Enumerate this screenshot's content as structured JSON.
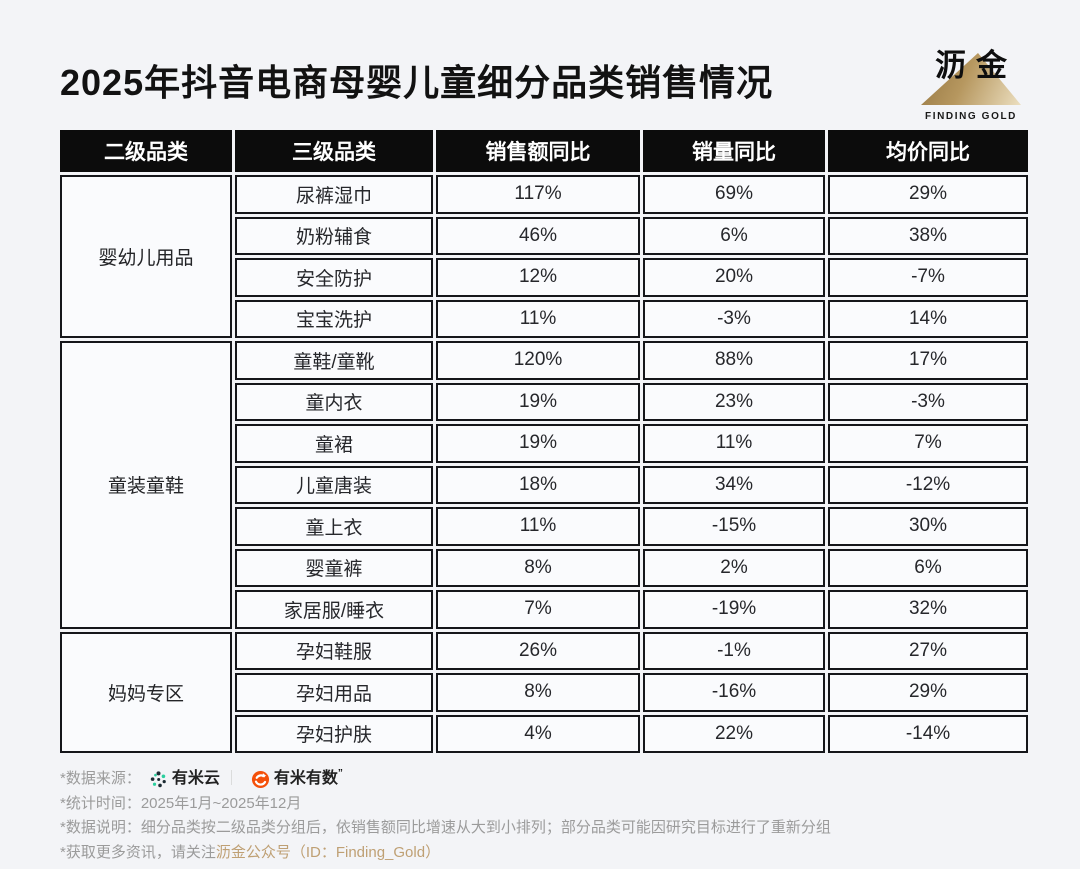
{
  "header": {
    "title": "2025年抖音电商母婴儿童细分品类销售情况",
    "brand": "沥金",
    "brand_subtitle": "FINDING GOLD"
  },
  "chart_data": {
    "type": "table",
    "title": "2025年抖音电商母婴儿童细分品类销售情况",
    "columns": [
      "二级品类",
      "三级品类",
      "销售额同比",
      "销量同比",
      "均价同比"
    ],
    "rows": [
      [
        "婴幼儿用品",
        "尿裤湿巾",
        "117%",
        "69%",
        "29%"
      ],
      [
        "婴幼儿用品",
        "奶粉辅食",
        "46%",
        "6%",
        "38%"
      ],
      [
        "婴幼儿用品",
        "安全防护",
        "12%",
        "20%",
        "-7%"
      ],
      [
        "婴幼儿用品",
        "宝宝洗护",
        "11%",
        "-3%",
        "14%"
      ],
      [
        "童装童鞋",
        "童鞋/童靴",
        "120%",
        "88%",
        "17%"
      ],
      [
        "童装童鞋",
        "童内衣",
        "19%",
        "23%",
        "-3%"
      ],
      [
        "童装童鞋",
        "童裙",
        "19%",
        "11%",
        "7%"
      ],
      [
        "童装童鞋",
        "儿童唐装",
        "18%",
        "34%",
        "-12%"
      ],
      [
        "童装童鞋",
        "童上衣",
        "11%",
        "-15%",
        "30%"
      ],
      [
        "童装童鞋",
        "婴童裤",
        "8%",
        "2%",
        "6%"
      ],
      [
        "童装童鞋",
        "家居服/睡衣",
        "7%",
        "-19%",
        "32%"
      ],
      [
        "妈妈专区",
        "孕妇鞋服",
        "26%",
        "-1%",
        "27%"
      ],
      [
        "妈妈专区",
        "孕妇用品",
        "8%",
        "-16%",
        "29%"
      ],
      [
        "妈妈专区",
        "孕妇护肤",
        "4%",
        "22%",
        "-14%"
      ]
    ],
    "layout": {
      "header_bg": "#0c0c0c",
      "header_text": "#ffffff",
      "cell_bg": "#fafbfd",
      "grid": "on"
    }
  },
  "footnotes": {
    "source_label": "*数据来源：",
    "source_1": "有米云",
    "source_divider": "｜",
    "source_2": "有米有数",
    "source_mark": "”",
    "period": "*统计时间：2025年1月~2025年12月",
    "note": "*数据说明：细分品类按二级品类分组后，依销售额同比增速从大到小排列；部分品类可能因研究目标进行了重新分组",
    "more_label": "*获取更多资讯，请关注",
    "more_link": "沥金公众号（ID：Finding_Gold）"
  },
  "colors": {
    "gold_accent": "#bfa074",
    "logo_triangle_gold": "#b6975f",
    "youmiyun_teal": "#2bcf9e",
    "youmiyun_dark": "#1c2b33",
    "youmiyoushu_orange": "#f4500a"
  }
}
